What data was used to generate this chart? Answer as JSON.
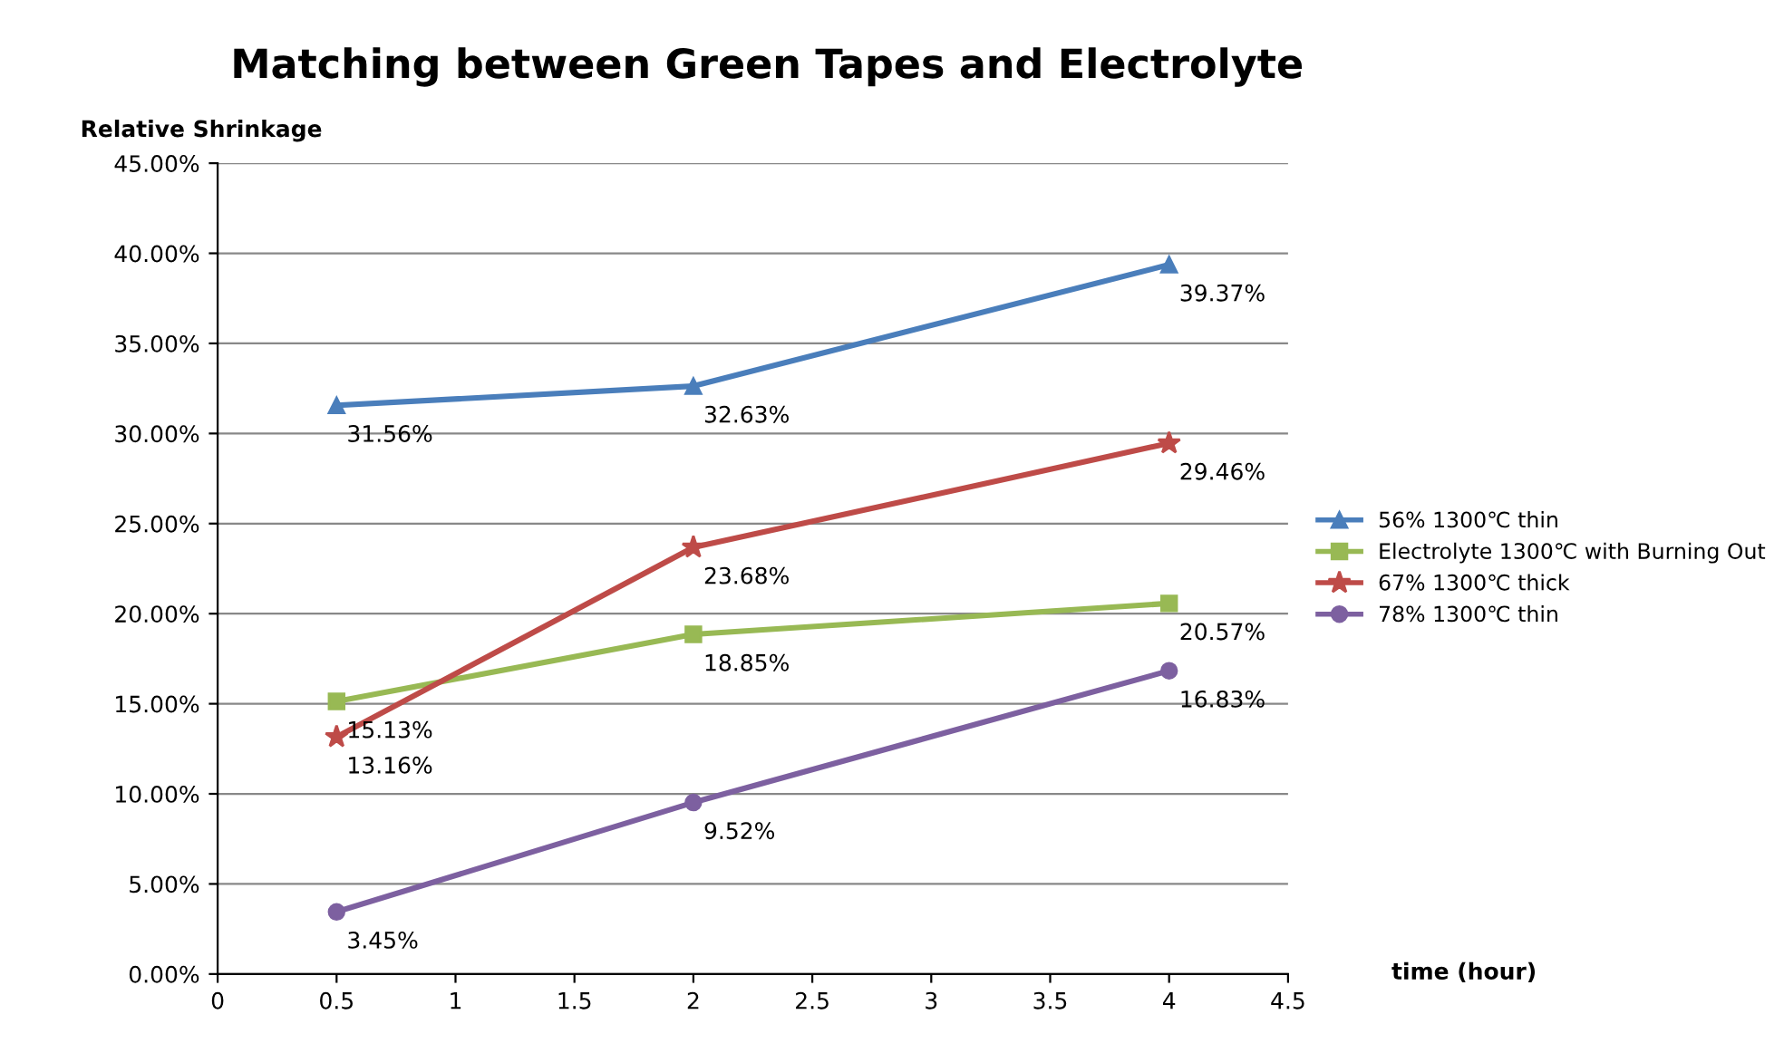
{
  "chart_data": {
    "type": "line",
    "title": "Matching between Green Tapes and Electrolyte",
    "xlabel": "time (hour)",
    "ylabel": "Relative Shrinkage",
    "x": [
      0.5,
      2,
      4
    ],
    "series": [
      {
        "name": "56% 1300℃ thin",
        "color": "#4a7ebb",
        "marker": "triangle",
        "values": [
          31.56,
          32.63,
          39.37
        ],
        "value_labels": [
          "31.56%",
          "32.63%",
          "39.37%"
        ]
      },
      {
        "name": "Electrolyte 1300℃ with Burning Out",
        "color": "#98b954",
        "marker": "square",
        "values": [
          15.13,
          18.85,
          20.57
        ],
        "value_labels": [
          "15.13%",
          "18.85%",
          "20.57%"
        ]
      },
      {
        "name": "67% 1300℃ thick",
        "color": "#be4b48",
        "marker": "star",
        "values": [
          13.16,
          23.68,
          29.46
        ],
        "value_labels": [
          "13.16%",
          "23.68%",
          "29.46%"
        ]
      },
      {
        "name": "78% 1300℃ thin",
        "color": "#7d60a0",
        "marker": "circle",
        "values": [
          3.45,
          9.52,
          16.83
        ],
        "value_labels": [
          "3.45%",
          "9.52%",
          "16.83%"
        ]
      }
    ],
    "xlim": [
      0,
      4.5
    ],
    "xticks": [
      0,
      0.5,
      1,
      1.5,
      2,
      2.5,
      3,
      3.5,
      4,
      4.5
    ],
    "ylim": [
      0,
      45
    ],
    "yticks": [
      {
        "value": 0,
        "label": "0.00%"
      },
      {
        "value": 5,
        "label": "5.00%"
      },
      {
        "value": 10,
        "label": "10.00%"
      },
      {
        "value": 15,
        "label": "15.00%"
      },
      {
        "value": 20,
        "label": "20.00%"
      },
      {
        "value": 25,
        "label": "25.00%"
      },
      {
        "value": 30,
        "label": "30.00%"
      },
      {
        "value": 35,
        "label": "35.00%"
      },
      {
        "value": 40,
        "label": "40.00%"
      },
      {
        "value": 45,
        "label": "45.00%"
      }
    ],
    "grid": "y",
    "legend": "right",
    "line_style": "solid"
  }
}
